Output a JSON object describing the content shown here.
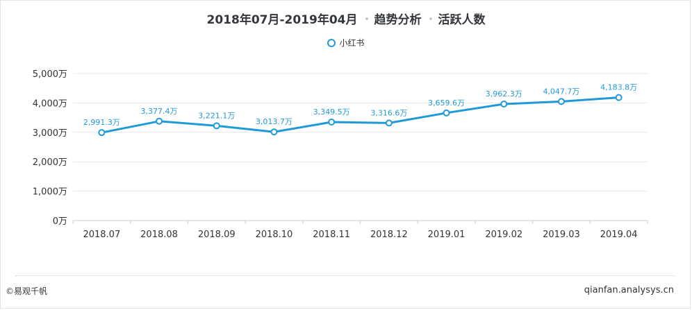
{
  "title": {
    "date_range": "2018年07月-2019年04月",
    "part2": "趋势分析",
    "part3": "活跃人数"
  },
  "legend": {
    "label": "小红书"
  },
  "footer": {
    "left": "©易观千帆",
    "right": "qianfan.analysys.cn"
  },
  "colors": {
    "line": "#1f9ad6",
    "label": "#1f9ad6",
    "grid": "#e8e8e8",
    "axis_text": "#333333"
  },
  "chart_data": {
    "type": "line",
    "title": "2018年07月-2019年04月 趋势分析 活跃人数",
    "categories": [
      "2018.07",
      "2018.08",
      "2018.09",
      "2018.10",
      "2018.11",
      "2018.12",
      "2019.01",
      "2019.02",
      "2019.03",
      "2019.04"
    ],
    "series": [
      {
        "name": "小红书",
        "values": [
          2991.3,
          3377.4,
          3221.1,
          3013.7,
          3349.5,
          3316.6,
          3659.6,
          3962.3,
          4047.7,
          4183.8
        ],
        "labels": [
          "2,991.3万",
          "3,377.4万",
          "3,221.1万",
          "3,013.7万",
          "3,349.5万",
          "3,316.6万",
          "3,659.6万",
          "3,962.3万",
          "4,047.7万",
          "4,183.8万"
        ]
      }
    ],
    "ylim": [
      0,
      5000
    ],
    "yticks": [
      0,
      1000,
      2000,
      3000,
      4000,
      5000
    ],
    "ytick_labels": [
      "0万",
      "1,000万",
      "2,000万",
      "3,000万",
      "4,000万",
      "5,000万"
    ],
    "grid": true,
    "legend_position": "top-center"
  }
}
